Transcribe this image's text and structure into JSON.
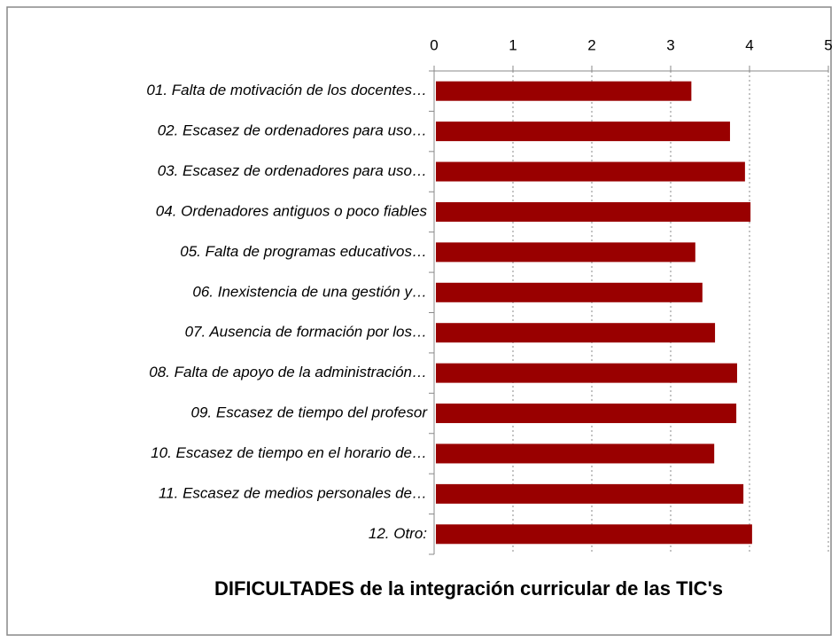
{
  "chart_data": {
    "type": "bar",
    "orientation": "horizontal",
    "title": "DIFICULTADES de la integración curricular de las TIC's",
    "categories": [
      "01. Falta de motivación de los docentes…",
      "02. Escasez de ordenadores para uso…",
      "03. Escasez de ordenadores para uso…",
      "04. Ordenadores antiguos o poco fiables",
      "05. Falta de programas educativos…",
      "06. Inexistencia de una gestión y…",
      "07. Ausencia de formación por los…",
      "08. Falta de apoyo de la administración…",
      "09. Escasez de tiempo del profesor",
      "10. Escasez de tiempo en el horario de…",
      "11. Escasez de medios personales de…",
      "12. Otro:"
    ],
    "values": [
      3.24,
      3.73,
      3.92,
      3.99,
      3.29,
      3.38,
      3.54,
      3.82,
      3.81,
      3.53,
      3.9,
      4.01
    ],
    "color": "#990000",
    "xlim": [
      0,
      5
    ],
    "xticks": [
      0,
      1,
      2,
      3,
      4,
      5
    ],
    "grid": true
  }
}
